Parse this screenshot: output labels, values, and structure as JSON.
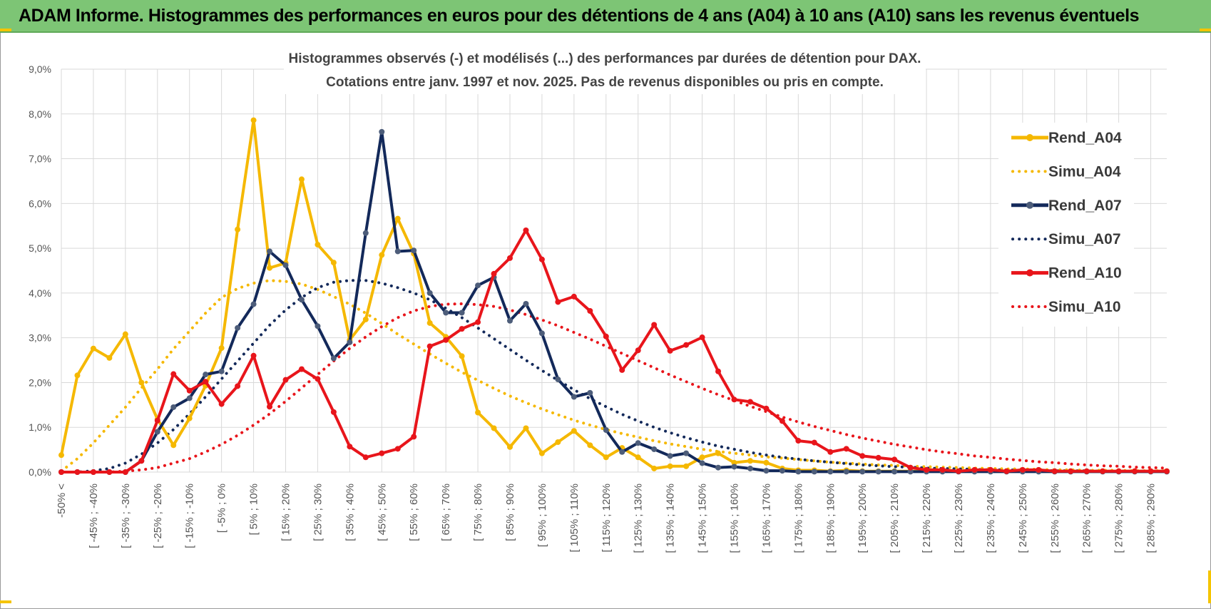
{
  "header": {
    "title": "ADAM Informe. Histogrammes des performances en euros pour des détentions de 4 ans (A04) à 10 ans (A10) sans les revenus éventuels"
  },
  "chart_data": {
    "type": "line",
    "title_lines": [
      "Histogrammes observés (-) et modélisés (...) des performances par durées de détention pour DAX.",
      "Cotations entre janv. 1997 et nov. 2025. Pas de revenus disponibles ou pris en compte."
    ],
    "ylim": [
      0,
      9
    ],
    "y_ticks": [
      "0,0%",
      "1,0%",
      "2,0%",
      "3,0%",
      "4,0%",
      "5,0%",
      "6,0%",
      "7,0%",
      "8,0%",
      "9,0%"
    ],
    "x_tick_labels": [
      "-50% <",
      "[ -45% ; -40%",
      "[ -35% ; -30%",
      "[ -25% ; -20%",
      "[ -15% ; -10%",
      "[ -5% ; 0%",
      "[ 5% ; 10%",
      "[ 15% ; 20%",
      "[ 25% ; 30%",
      "[ 35% ; 40%",
      "[ 45% ; 50%",
      "[ 55% ; 60%",
      "[ 65% ; 70%",
      "[ 75% ; 80%",
      "[ 85% ; 90%",
      "[ 95% ; 100%",
      "[ 105% ; 110%",
      "[ 115% ; 120%",
      "[ 125% ; 130%",
      "[ 135% ; 140%",
      "[ 145% ; 150%",
      "[ 155% ; 160%",
      "[ 165% ; 170%",
      "[ 175% ; 180%",
      "[ 185% ; 190%",
      "[ 195% ; 200%",
      "[ 205% ; 210%",
      "[ 215% ; 220%",
      "[ 225% ; 230%",
      "[ 235% ; 240%",
      "[ 245% ; 250%",
      "[ 255% ; 260%",
      "[ 265% ; 270%",
      "[ 275% ; 280%",
      "[ 285% ; 290%"
    ],
    "n_categories": 70,
    "series": [
      {
        "name": "Rend_A04",
        "color": "#f5b800",
        "style": "solid",
        "marker": true,
        "values": [
          0.38,
          2.16,
          2.76,
          2.55,
          3.08,
          2.0,
          1.18,
          0.6,
          1.2,
          1.93,
          2.77,
          5.42,
          7.86,
          4.56,
          4.67,
          6.54,
          5.08,
          4.68,
          2.95,
          3.41,
          4.85,
          5.66,
          4.88,
          3.33,
          3.02,
          2.59,
          1.33,
          0.98,
          0.56,
          0.98,
          0.42,
          0.67,
          0.92,
          0.6,
          0.33,
          0.54,
          0.33,
          0.08,
          0.13,
          0.13,
          0.33,
          0.42,
          0.21,
          0.25,
          0.21,
          0.08,
          0.04,
          0.04,
          0.02,
          0.04,
          0.02,
          0.02,
          0.02,
          0.02,
          0.02,
          0.02,
          0.02,
          0.02,
          0.02,
          0.02,
          0.02,
          0.02,
          0.02,
          0.02,
          0.02,
          0.02,
          0.02,
          0.02,
          0.02,
          0.02
        ]
      },
      {
        "name": "Simu_A04",
        "color": "#f5b800",
        "style": "dotted",
        "marker": false,
        "values": [
          0.02,
          0.3,
          0.65,
          1.05,
          1.45,
          1.88,
          2.3,
          2.75,
          3.15,
          3.55,
          3.9,
          4.1,
          4.22,
          4.28,
          4.26,
          4.2,
          4.08,
          3.92,
          3.75,
          3.55,
          3.32,
          3.08,
          2.86,
          2.64,
          2.43,
          2.23,
          2.05,
          1.87,
          1.7,
          1.55,
          1.41,
          1.28,
          1.16,
          1.05,
          0.95,
          0.86,
          0.78,
          0.7,
          0.63,
          0.57,
          0.51,
          0.46,
          0.42,
          0.38,
          0.34,
          0.31,
          0.28,
          0.25,
          0.22,
          0.2,
          0.18,
          0.16,
          0.15,
          0.13,
          0.12,
          0.11,
          0.1,
          0.09,
          0.08,
          0.07,
          0.07,
          0.06,
          0.05,
          0.05,
          0.04,
          0.04,
          0.04,
          0.03,
          0.03,
          0.03
        ]
      },
      {
        "name": "Rend_A07",
        "color": "#13295a",
        "style": "solid",
        "marker": true,
        "values": [
          0.0,
          0.0,
          0.0,
          0.0,
          0.0,
          0.25,
          0.9,
          1.45,
          1.65,
          2.18,
          2.25,
          3.22,
          3.75,
          4.93,
          4.62,
          3.85,
          3.26,
          2.54,
          2.9,
          5.34,
          7.6,
          4.93,
          4.95,
          4.0,
          3.56,
          3.56,
          4.17,
          4.35,
          3.38,
          3.76,
          3.1,
          2.07,
          1.68,
          1.77,
          0.94,
          0.45,
          0.65,
          0.51,
          0.36,
          0.42,
          0.2,
          0.1,
          0.12,
          0.08,
          0.03,
          0.03,
          0.01,
          0.01,
          0.01,
          0.01,
          0.01,
          0.01,
          0.01,
          0.01,
          0.01,
          0.01,
          0.01,
          0.01,
          0.01,
          0.01,
          0.01,
          0.01,
          0.01,
          0.01,
          0.01,
          0.01,
          0.01,
          0.01,
          0.01,
          0.01
        ]
      },
      {
        "name": "Simu_A07",
        "color": "#13295a",
        "style": "dotted",
        "marker": false,
        "values": [
          0.0,
          0.0,
          0.03,
          0.08,
          0.2,
          0.4,
          0.65,
          0.95,
          1.3,
          1.68,
          2.08,
          2.48,
          2.88,
          3.28,
          3.62,
          3.9,
          4.12,
          4.24,
          4.28,
          4.28,
          4.22,
          4.12,
          4.0,
          3.85,
          3.66,
          3.45,
          3.22,
          2.98,
          2.74,
          2.5,
          2.27,
          2.05,
          1.84,
          1.64,
          1.46,
          1.29,
          1.14,
          1.0,
          0.88,
          0.77,
          0.67,
          0.58,
          0.51,
          0.44,
          0.38,
          0.33,
          0.29,
          0.25,
          0.22,
          0.19,
          0.16,
          0.14,
          0.12,
          0.11,
          0.09,
          0.08,
          0.07,
          0.06,
          0.05,
          0.05,
          0.04,
          0.04,
          0.03,
          0.03,
          0.03,
          0.02,
          0.02,
          0.02,
          0.02,
          0.02
        ]
      },
      {
        "name": "Rend_A10",
        "color": "#e8151b",
        "style": "solid",
        "marker": true,
        "values": [
          0.0,
          0.0,
          0.0,
          0.0,
          0.0,
          0.25,
          1.15,
          2.19,
          1.82,
          2.02,
          1.52,
          1.92,
          2.6,
          1.46,
          2.06,
          2.3,
          2.08,
          1.34,
          0.57,
          0.33,
          0.42,
          0.52,
          0.79,
          2.81,
          2.95,
          3.2,
          3.35,
          4.43,
          4.78,
          5.4,
          4.75,
          3.8,
          3.92,
          3.6,
          3.03,
          2.28,
          2.72,
          3.29,
          2.71,
          2.84,
          3.01,
          2.25,
          1.62,
          1.57,
          1.42,
          1.14,
          0.7,
          0.66,
          0.45,
          0.52,
          0.36,
          0.32,
          0.28,
          0.1,
          0.05,
          0.05,
          0.02,
          0.05,
          0.05,
          0.02,
          0.05,
          0.05,
          0.02,
          0.02,
          0.02,
          0.02,
          0.02,
          0.02,
          0.02,
          0.02
        ]
      },
      {
        "name": "Simu_A10",
        "color": "#e8151b",
        "style": "dotted",
        "marker": false,
        "values": [
          0.0,
          0.0,
          0.0,
          0.0,
          0.02,
          0.05,
          0.1,
          0.2,
          0.3,
          0.45,
          0.62,
          0.82,
          1.05,
          1.3,
          1.58,
          1.88,
          2.18,
          2.48,
          2.76,
          3.02,
          3.25,
          3.45,
          3.6,
          3.7,
          3.75,
          3.76,
          3.74,
          3.7,
          3.62,
          3.52,
          3.4,
          3.27,
          3.12,
          2.97,
          2.81,
          2.65,
          2.49,
          2.33,
          2.17,
          2.02,
          1.87,
          1.73,
          1.6,
          1.47,
          1.35,
          1.23,
          1.12,
          1.02,
          0.93,
          0.84,
          0.76,
          0.69,
          0.62,
          0.56,
          0.5,
          0.45,
          0.41,
          0.36,
          0.33,
          0.29,
          0.26,
          0.23,
          0.21,
          0.18,
          0.16,
          0.14,
          0.13,
          0.11,
          0.1,
          0.09
        ]
      }
    ]
  }
}
